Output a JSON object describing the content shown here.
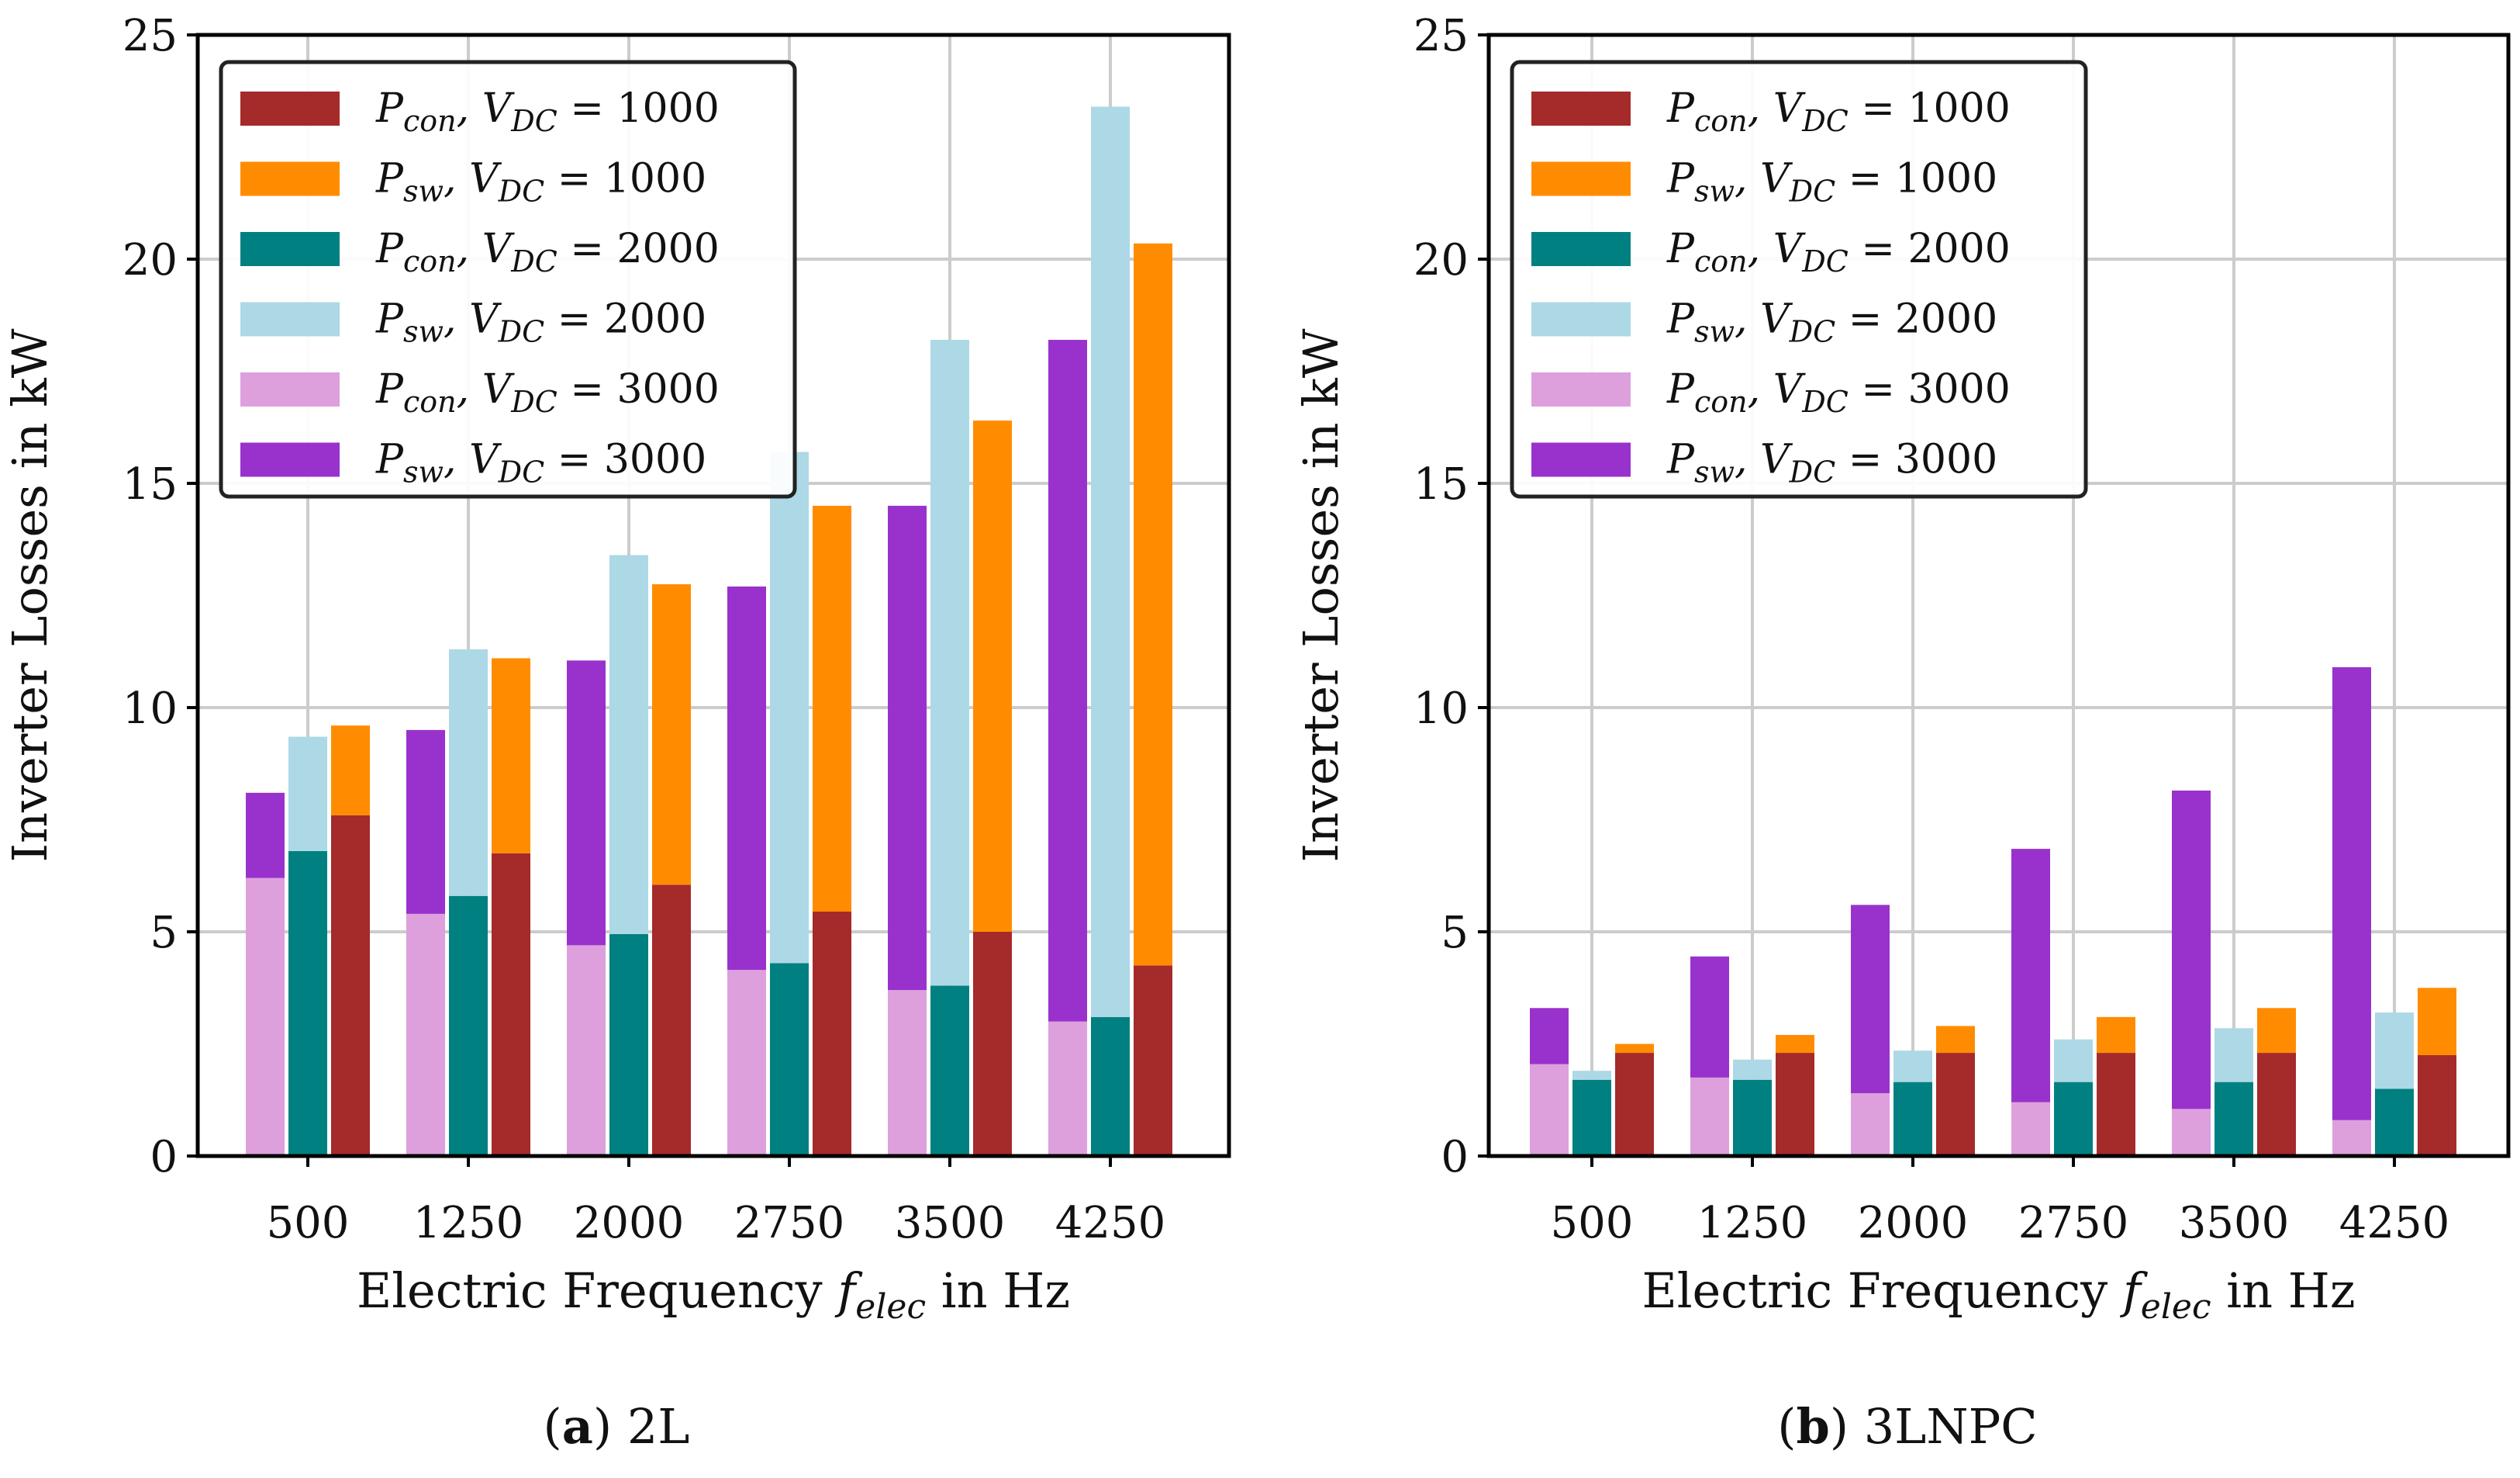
{
  "chart_data": [
    {
      "type": "bar",
      "stacked": true,
      "caption_letter": "a",
      "caption_text": "2L",
      "xlabel": "Electric Frequency f_elec in Hz",
      "ylabel": "Inverter Losses in kW",
      "ylim": [
        0,
        25
      ],
      "yticks": [
        "0",
        "5",
        "10",
        "15",
        "20",
        "25"
      ],
      "categories": [
        "500",
        "1250",
        "2000",
        "2750",
        "3500",
        "4250"
      ],
      "grid": true,
      "legend_position": "top-left",
      "groups": [
        {
          "vdc": "3000",
          "con_color": "#dda0dd",
          "sw_color": "#9932cc",
          "con": [
            6.2,
            5.4,
            4.7,
            4.15,
            3.7,
            3.0
          ],
          "sw": [
            1.9,
            4.1,
            6.35,
            8.55,
            10.8,
            15.2
          ]
        },
        {
          "vdc": "2000",
          "con_color": "#008080",
          "sw_color": "#add8e6",
          "con": [
            6.8,
            5.8,
            4.95,
            4.3,
            3.8,
            3.1
          ],
          "sw": [
            2.55,
            5.5,
            8.45,
            11.4,
            14.4,
            20.3
          ]
        },
        {
          "vdc": "1000",
          "con_color": "#a52a2a",
          "sw_color": "#ff8c00",
          "con": [
            7.6,
            6.75,
            6.05,
            5.45,
            5.0,
            4.25
          ],
          "sw": [
            2.0,
            4.35,
            6.7,
            9.05,
            11.4,
            16.1
          ]
        }
      ]
    },
    {
      "type": "bar",
      "stacked": true,
      "caption_letter": "b",
      "caption_text": "3LNPC",
      "xlabel": "Electric Frequency f_elec in Hz",
      "ylabel": "Inverter Losses in kW",
      "ylim": [
        0,
        25
      ],
      "yticks": [
        "0",
        "5",
        "10",
        "15",
        "20",
        "25"
      ],
      "categories": [
        "500",
        "1250",
        "2000",
        "2750",
        "3500",
        "4250"
      ],
      "grid": true,
      "legend_position": "top-left",
      "groups": [
        {
          "vdc": "3000",
          "con_color": "#dda0dd",
          "sw_color": "#9932cc",
          "con": [
            2.05,
            1.75,
            1.4,
            1.2,
            1.05,
            0.8
          ],
          "sw": [
            1.25,
            2.7,
            4.2,
            5.65,
            7.1,
            10.1
          ]
        },
        {
          "vdc": "2000",
          "con_color": "#008080",
          "sw_color": "#add8e6",
          "con": [
            1.7,
            1.7,
            1.65,
            1.65,
            1.65,
            1.5
          ],
          "sw": [
            0.2,
            0.45,
            0.7,
            0.95,
            1.2,
            1.7
          ]
        },
        {
          "vdc": "1000",
          "con_color": "#a52a2a",
          "sw_color": "#ff8c00",
          "con": [
            2.3,
            2.3,
            2.3,
            2.3,
            2.3,
            2.25
          ],
          "sw": [
            0.2,
            0.4,
            0.6,
            0.8,
            1.0,
            1.5
          ]
        }
      ]
    }
  ],
  "legend": [
    {
      "sym": "P",
      "sub": "con",
      "vdc": "1000",
      "color": "#a52a2a"
    },
    {
      "sym": "P",
      "sub": "sw",
      "vdc": "1000",
      "color": "#ff8c00"
    },
    {
      "sym": "P",
      "sub": "con",
      "vdc": "2000",
      "color": "#008080"
    },
    {
      "sym": "P",
      "sub": "sw",
      "vdc": "2000",
      "color": "#add8e6"
    },
    {
      "sym": "P",
      "sub": "con",
      "vdc": "3000",
      "color": "#dda0dd"
    },
    {
      "sym": "P",
      "sub": "sw",
      "vdc": "3000",
      "color": "#9932cc"
    }
  ],
  "colors": {
    "grid": "#cccccc",
    "axis": "#000000",
    "text": "#111111"
  }
}
